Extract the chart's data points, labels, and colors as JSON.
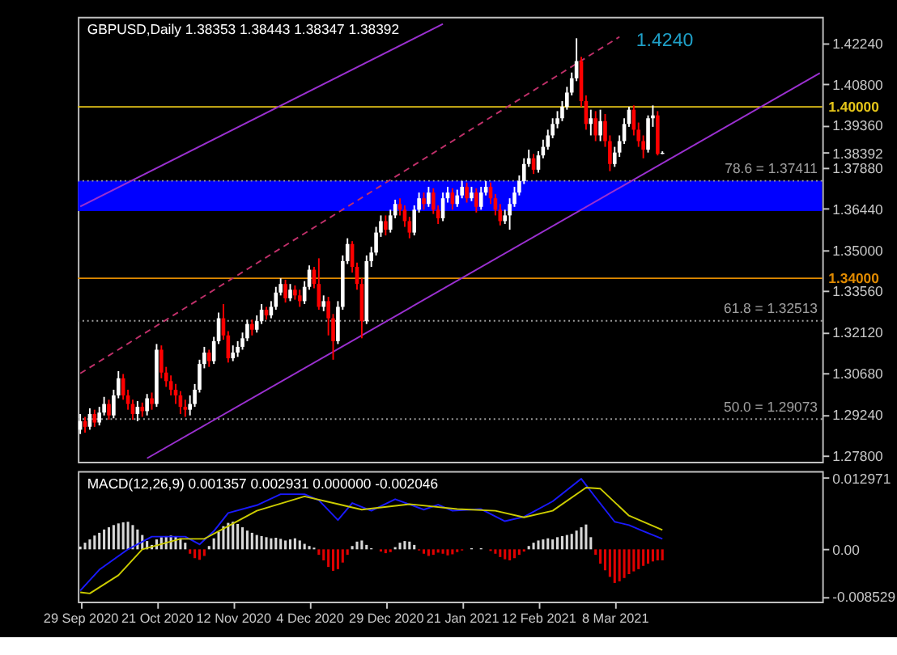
{
  "chart_data": [
    {
      "type": "candlestick",
      "title": "GBPUSD,Daily  1.38353 1.38443 1.38347 1.38392",
      "tick_labels": "y",
      "categories": [
        null,
        null,
        null,
        null,
        null,
        null,
        null,
        null,
        null,
        null,
        null,
        null,
        null,
        null,
        null,
        null,
        null,
        null,
        null,
        null,
        null,
        null,
        null,
        null,
        null,
        null,
        null,
        null,
        null,
        null,
        null,
        null,
        null,
        null,
        null,
        null,
        null,
        null,
        null,
        null,
        null,
        null,
        null,
        null,
        null,
        null,
        null,
        null,
        null,
        null,
        null,
        null,
        null,
        null,
        null,
        null,
        null,
        null,
        null,
        null,
        null,
        null,
        null,
        null,
        null,
        null,
        null,
        null,
        null,
        null,
        null,
        null,
        null,
        null,
        null,
        null,
        null,
        null,
        null,
        null,
        null,
        null,
        null,
        null,
        null,
        null,
        null,
        null,
        null,
        null,
        null,
        null,
        null,
        null,
        null,
        null,
        null,
        null,
        null,
        null,
        null,
        null,
        null,
        null,
        null,
        null,
        null,
        null,
        null,
        null,
        null,
        null,
        null,
        null,
        null,
        null,
        null,
        null,
        null,
        null,
        null,
        null,
        null,
        null,
        null,
        null,
        null,
        null,
        null,
        null,
        null,
        null,
        null,
        null,
        null,
        null,
        null,
        null,
        null,
        null,
        null,
        null,
        null,
        null,
        null,
        null,
        null,
        null,
        null,
        null,
        null,
        null,
        null,
        null,
        null,
        null
      ],
      "ylim": [
        1.2758,
        1.4315
      ],
      "yticks": [
        {
          "value": 1.278,
          "label": "1.27800"
        },
        {
          "value": 1.2924,
          "label": "1.29240"
        },
        {
          "value": 1.3068,
          "label": "1.30680"
        },
        {
          "value": 1.3212,
          "label": "1.32120"
        },
        {
          "value": 1.3356,
          "label": "1.33560"
        },
        {
          "value": 1.35,
          "label": "1.35000"
        },
        {
          "value": 1.3644,
          "label": "1.36440"
        },
        {
          "value": 1.3788,
          "label": "1.37880"
        },
        {
          "value": 1.38392,
          "label": "1.38392"
        },
        {
          "value": 1.3936,
          "label": "1.39360"
        },
        {
          "value": 1.408,
          "label": "1.40800"
        },
        {
          "value": 1.4224,
          "label": "1.42240"
        }
      ],
      "ohlc": [
        [
          1.287,
          1.2925,
          1.2855,
          1.29
        ],
        [
          1.29,
          1.2915,
          1.286,
          1.288
        ],
        [
          1.288,
          1.2945,
          1.287,
          1.2925
        ],
        [
          1.2925,
          1.294,
          1.288,
          1.2895
        ],
        [
          1.2895,
          1.295,
          1.2885,
          1.293
        ],
        [
          1.293,
          1.2985,
          1.292,
          1.296
        ],
        [
          1.296,
          1.2975,
          1.2905,
          1.292
        ],
        [
          1.292,
          1.301,
          1.291,
          1.299
        ],
        [
          1.299,
          1.3075,
          1.298,
          1.305
        ],
        [
          1.305,
          1.3065,
          1.2975,
          1.299
        ],
        [
          1.299,
          1.301,
          1.294,
          1.296
        ],
        [
          1.296,
          1.2975,
          1.2905,
          1.2925
        ],
        [
          1.2925,
          1.297,
          1.29,
          1.295
        ],
        [
          1.295,
          1.2965,
          1.2915,
          1.2935
        ],
        [
          1.2935,
          1.2995,
          1.292,
          1.298
        ],
        [
          1.298,
          1.3,
          1.294,
          1.296
        ],
        [
          1.296,
          1.317,
          1.295,
          1.315
        ],
        [
          1.315,
          1.3165,
          1.305,
          1.307
        ],
        [
          1.307,
          1.309,
          1.302,
          1.304
        ],
        [
          1.304,
          1.306,
          1.299,
          1.301
        ],
        [
          1.301,
          1.303,
          1.296,
          1.299
        ],
        [
          1.299,
          1.3005,
          1.2925,
          1.295
        ],
        [
          1.295,
          1.2975,
          1.2915,
          1.294
        ],
        [
          1.294,
          1.299,
          1.292,
          1.296
        ],
        [
          1.296,
          1.303,
          1.295,
          1.301
        ],
        [
          1.301,
          1.3115,
          1.3,
          1.31
        ],
        [
          1.31,
          1.316,
          1.3085,
          1.314
        ],
        [
          1.314,
          1.315,
          1.309,
          1.311
        ],
        [
          1.311,
          1.3195,
          1.31,
          1.318
        ],
        [
          1.318,
          1.328,
          1.317,
          1.326
        ],
        [
          1.326,
          1.331,
          1.3185,
          1.32
        ],
        [
          1.32,
          1.3215,
          1.3105,
          1.312
        ],
        [
          1.312,
          1.3165,
          1.311,
          1.314
        ],
        [
          1.314,
          1.318,
          1.3125,
          1.316
        ],
        [
          1.316,
          1.321,
          1.315,
          1.319
        ],
        [
          1.319,
          1.3255,
          1.318,
          1.324
        ],
        [
          1.324,
          1.3255,
          1.32,
          1.322
        ],
        [
          1.322,
          1.327,
          1.321,
          1.325
        ],
        [
          1.325,
          1.331,
          1.324,
          1.329
        ],
        [
          1.329,
          1.33,
          1.3255,
          1.327
        ],
        [
          1.327,
          1.332,
          1.326,
          1.33
        ],
        [
          1.33,
          1.337,
          1.329,
          1.335
        ],
        [
          1.335,
          1.34,
          1.334,
          1.338
        ],
        [
          1.338,
          1.3395,
          1.3315,
          1.333
        ],
        [
          1.333,
          1.338,
          1.332,
          1.336
        ],
        [
          1.336,
          1.3375,
          1.3325,
          1.334
        ],
        [
          1.334,
          1.336,
          1.33,
          1.332
        ],
        [
          1.332,
          1.339,
          1.331,
          1.337
        ],
        [
          1.337,
          1.3445,
          1.336,
          1.343
        ],
        [
          1.343,
          1.344,
          1.3365,
          1.338
        ],
        [
          1.338,
          1.347,
          1.329,
          1.33
        ],
        [
          1.33,
          1.334,
          1.3285,
          1.332
        ],
        [
          1.332,
          1.3335,
          1.32,
          1.326
        ],
        [
          1.326,
          1.3275,
          1.3115,
          1.318
        ],
        [
          1.318,
          1.332,
          1.317,
          1.33
        ],
        [
          1.33,
          1.348,
          1.329,
          1.346
        ],
        [
          1.346,
          1.354,
          1.345,
          1.352
        ],
        [
          1.352,
          1.353,
          1.342,
          1.344
        ],
        [
          1.344,
          1.3455,
          1.336,
          1.338
        ],
        [
          1.338,
          1.34,
          1.319,
          1.325
        ],
        [
          1.325,
          1.348,
          1.324,
          1.346
        ],
        [
          1.346,
          1.351,
          1.344,
          1.349
        ],
        [
          1.349,
          1.358,
          1.348,
          1.356
        ],
        [
          1.356,
          1.362,
          1.3545,
          1.36
        ],
        [
          1.36,
          1.362,
          1.355,
          1.357
        ],
        [
          1.357,
          1.364,
          1.356,
          1.362
        ],
        [
          1.362,
          1.3675,
          1.361,
          1.366
        ],
        [
          1.366,
          1.368,
          1.362,
          1.364
        ],
        [
          1.364,
          1.3655,
          1.358,
          1.36
        ],
        [
          1.36,
          1.3615,
          1.354,
          1.356
        ],
        [
          1.356,
          1.3655,
          1.355,
          1.364
        ],
        [
          1.364,
          1.37,
          1.363,
          1.368
        ],
        [
          1.368,
          1.37,
          1.364,
          1.366
        ],
        [
          1.366,
          1.372,
          1.365,
          1.37
        ],
        [
          1.37,
          1.3715,
          1.3625,
          1.364
        ],
        [
          1.364,
          1.3655,
          1.359,
          1.361
        ],
        [
          1.361,
          1.37,
          1.36,
          1.368
        ],
        [
          1.368,
          1.372,
          1.3665,
          1.37
        ],
        [
          1.37,
          1.3715,
          1.364,
          1.366
        ],
        [
          1.366,
          1.371,
          1.365,
          1.369
        ],
        [
          1.369,
          1.374,
          1.368,
          1.372
        ],
        [
          1.372,
          1.3735,
          1.3665,
          1.368
        ],
        [
          1.368,
          1.372,
          1.367,
          1.37
        ],
        [
          1.37,
          1.3715,
          1.363,
          1.365
        ],
        [
          1.365,
          1.372,
          1.364,
          1.37
        ],
        [
          1.37,
          1.374,
          1.369,
          1.372
        ],
        [
          1.372,
          1.3735,
          1.366,
          1.368
        ],
        [
          1.368,
          1.3695,
          1.362,
          1.364
        ],
        [
          1.364,
          1.366,
          1.3585,
          1.36
        ],
        [
          1.36,
          1.364,
          1.359,
          1.362
        ],
        [
          1.362,
          1.368,
          1.357,
          1.366
        ],
        [
          1.366,
          1.372,
          1.365,
          1.37
        ],
        [
          1.37,
          1.376,
          1.369,
          1.374
        ],
        [
          1.374,
          1.382,
          1.373,
          1.38
        ],
        [
          1.38,
          1.385,
          1.379,
          1.382
        ],
        [
          1.382,
          1.3835,
          1.3765,
          1.378
        ],
        [
          1.378,
          1.3845,
          1.377,
          1.383
        ],
        [
          1.383,
          1.3885,
          1.382,
          1.386
        ],
        [
          1.386,
          1.392,
          1.385,
          1.39
        ],
        [
          1.39,
          1.396,
          1.389,
          1.394
        ],
        [
          1.394,
          1.3985,
          1.3925,
          1.396
        ],
        [
          1.396,
          1.402,
          1.395,
          1.4
        ],
        [
          1.4,
          1.407,
          1.399,
          1.405
        ],
        [
          1.405,
          1.412,
          1.404,
          1.41
        ],
        [
          1.41,
          1.424,
          1.409,
          1.416
        ],
        [
          1.416,
          1.4175,
          1.4,
          1.402
        ],
        [
          1.402,
          1.404,
          1.392,
          1.394
        ],
        [
          1.394,
          1.399,
          1.39,
          1.396
        ],
        [
          1.396,
          1.3985,
          1.388,
          1.39
        ],
        [
          1.39,
          1.399,
          1.388,
          1.395
        ],
        [
          1.395,
          1.3975,
          1.386,
          1.388
        ],
        [
          1.388,
          1.39,
          1.3775,
          1.38
        ],
        [
          1.38,
          1.386,
          1.379,
          1.384
        ],
        [
          1.384,
          1.39,
          1.3825,
          1.388
        ],
        [
          1.388,
          1.396,
          1.387,
          1.394
        ],
        [
          1.394,
          1.4,
          1.393,
          1.399
        ],
        [
          1.399,
          1.4005,
          1.39,
          1.392
        ],
        [
          1.392,
          1.3945,
          1.386,
          1.388
        ],
        [
          1.388,
          1.39,
          1.382,
          1.385
        ],
        [
          1.385,
          1.397,
          1.384,
          1.396
        ],
        [
          1.396,
          1.4005,
          1.393,
          1.397
        ],
        [
          1.397,
          1.3985,
          1.383,
          1.38353
        ],
        [
          1.38353,
          1.38443,
          1.38347,
          1.38392
        ],
        null,
        null,
        null,
        null,
        null,
        null,
        null,
        null,
        null,
        null,
        null,
        null,
        null,
        null,
        null,
        null,
        null,
        null,
        null,
        null,
        null,
        null,
        null,
        null,
        null,
        null,
        null,
        null,
        null,
        null,
        null,
        null,
        null
      ],
      "series": [
        {
          "type": "line",
          "color": "#9b30d0",
          "line_style": "solid",
          "values": [
            1.3651,
            null,
            null,
            null,
            null,
            null,
            null,
            null,
            null,
            null,
            null,
            null,
            null,
            null,
            null,
            null,
            null,
            null,
            null,
            null,
            null,
            null,
            null,
            null,
            null,
            null,
            null,
            null,
            null,
            null,
            null,
            null,
            null,
            null,
            null,
            null,
            null,
            null,
            null,
            null,
            null,
            null,
            null,
            null,
            null,
            null,
            null,
            null,
            null,
            null,
            null,
            null,
            null,
            null,
            null,
            null,
            null,
            null,
            null,
            null,
            null,
            null,
            null,
            null,
            null,
            null,
            null,
            null,
            null,
            null,
            null,
            null,
            null,
            null,
            null,
            null,
            1.429,
            null,
            null,
            null,
            null,
            null,
            null,
            null,
            null,
            null,
            null,
            null,
            null,
            null,
            null,
            null,
            null,
            null,
            null,
            null,
            null,
            null,
            null,
            null,
            null,
            null,
            null,
            null,
            null,
            null,
            null,
            null,
            null,
            null,
            null,
            null,
            null,
            null,
            null,
            null,
            null,
            null,
            null,
            null,
            null,
            null,
            null,
            null,
            null,
            null,
            null,
            null,
            null,
            null,
            null,
            null,
            null,
            null,
            null,
            null,
            null,
            null,
            null,
            null,
            null,
            null,
            null,
            null,
            null,
            null,
            null,
            null,
            null,
            null,
            null,
            null,
            null,
            null,
            null,
            null
          ]
        },
        {
          "type": "line",
          "color": "#c0306a",
          "line_style": "dashed",
          "values": [
            1.3067,
            null,
            null,
            null,
            null,
            null,
            null,
            null,
            null,
            null,
            null,
            null,
            null,
            null,
            null,
            null,
            null,
            null,
            null,
            null,
            null,
            null,
            null,
            null,
            null,
            null,
            null,
            null,
            null,
            null,
            null,
            null,
            null,
            null,
            null,
            null,
            null,
            null,
            null,
            null,
            null,
            null,
            null,
            null,
            null,
            null,
            null,
            null,
            null,
            null,
            null,
            null,
            null,
            null,
            null,
            null,
            null,
            null,
            null,
            null,
            null,
            null,
            null,
            null,
            null,
            null,
            null,
            null,
            null,
            null,
            null,
            null,
            null,
            null,
            null,
            null,
            null,
            null,
            null,
            null,
            null,
            null,
            null,
            null,
            null,
            null,
            null,
            null,
            null,
            null,
            null,
            null,
            null,
            null,
            null,
            null,
            null,
            null,
            null,
            null,
            null,
            null,
            null,
            null,
            null,
            null,
            null,
            null,
            null,
            null,
            null,
            null,
            null,
            1.4245,
            null,
            null,
            null,
            null,
            null,
            null,
            null,
            null,
            null,
            null,
            null,
            null,
            null,
            null,
            null,
            null,
            null,
            null,
            null,
            null,
            null,
            null,
            null,
            null,
            null,
            null,
            null,
            null,
            null,
            null,
            null,
            null,
            null,
            null,
            null,
            null,
            null,
            null,
            null,
            null,
            null,
            null
          ]
        },
        {
          "type": "line",
          "color": "#9b30d0",
          "line_style": "solid",
          "values": [
            null,
            null,
            null,
            null,
            null,
            null,
            null,
            null,
            null,
            null,
            null,
            null,
            null,
            null,
            1.277,
            null,
            null,
            null,
            null,
            null,
            null,
            null,
            null,
            null,
            null,
            null,
            null,
            null,
            null,
            null,
            null,
            null,
            null,
            null,
            null,
            null,
            null,
            null,
            null,
            null,
            null,
            null,
            null,
            null,
            null,
            null,
            null,
            null,
            null,
            null,
            null,
            null,
            null,
            null,
            null,
            null,
            null,
            null,
            null,
            null,
            null,
            null,
            null,
            null,
            null,
            null,
            null,
            null,
            null,
            null,
            null,
            null,
            null,
            null,
            null,
            null,
            null,
            null,
            null,
            null,
            null,
            null,
            null,
            null,
            null,
            null,
            null,
            null,
            null,
            null,
            null,
            null,
            null,
            null,
            null,
            null,
            null,
            null,
            null,
            null,
            null,
            null,
            null,
            null,
            null,
            null,
            null,
            null,
            null,
            null,
            null,
            null,
            null,
            null,
            null,
            null,
            null,
            null,
            null,
            null,
            null,
            null,
            null,
            null,
            null,
            null,
            null,
            null,
            null,
            null,
            null,
            null,
            null,
            null,
            null,
            null,
            null,
            null,
            null,
            null,
            null,
            null,
            null,
            null,
            null,
            null,
            null,
            null,
            null,
            null,
            null,
            null,
            null,
            null,
            null,
            1.4118
          ]
        }
      ],
      "bands": [
        {
          "axis": "y",
          "from": 1.3635,
          "to": 1.37411,
          "color": "#0000ff"
        }
      ],
      "ref_lines": [
        {
          "axis": "y",
          "value": 1.4,
          "label": "1.40000",
          "color": "#e6c619",
          "line_style": "solid"
        },
        {
          "axis": "y",
          "value": 1.34,
          "label": "1.34000",
          "color": "#e08a00",
          "line_style": "solid"
        },
        {
          "axis": "y",
          "value": 1.37411,
          "label": "78.6 = 1.37411",
          "color": "#a0a0a0",
          "line_style": "dotted"
        },
        {
          "axis": "y",
          "value": 1.32513,
          "label": "61.8 = 1.32513",
          "color": "#a0a0a0",
          "line_style": "dotted"
        },
        {
          "axis": "y",
          "value": 1.29073,
          "label": "50.0 = 1.29073",
          "color": "#a0a0a0",
          "line_style": "dotted"
        }
      ],
      "annotations": [
        "1.4240"
      ]
    },
    {
      "type": "bar",
      "title": "MACD(12,26,9) 0.001357 0.002931 0.000000 -0.002046",
      "categories": [
        "29 Sep 2020",
        null,
        null,
        null,
        null,
        null,
        null,
        null,
        null,
        null,
        null,
        null,
        null,
        null,
        null,
        null,
        "21 Oct 2020",
        null,
        null,
        null,
        null,
        null,
        null,
        null,
        null,
        null,
        null,
        null,
        null,
        null,
        null,
        null,
        "12 Nov 2020",
        null,
        null,
        null,
        null,
        null,
        null,
        null,
        null,
        null,
        null,
        null,
        null,
        null,
        null,
        null,
        "4 Dec 2020",
        null,
        null,
        null,
        null,
        null,
        null,
        null,
        null,
        null,
        null,
        null,
        null,
        null,
        null,
        null,
        "29 Dec 2020",
        null,
        null,
        null,
        null,
        null,
        null,
        null,
        null,
        null,
        null,
        null,
        null,
        null,
        null,
        null,
        "21 Jan 2021",
        null,
        null,
        null,
        null,
        null,
        null,
        null,
        null,
        null,
        null,
        null,
        null,
        null,
        null,
        null,
        "12 Feb 2021",
        null,
        null,
        null,
        null,
        null,
        null,
        null,
        null,
        null,
        null,
        null,
        null,
        null,
        null,
        null,
        "8 Mar 2021",
        null,
        null,
        null,
        null,
        null,
        null,
        null,
        null,
        null,
        null,
        null,
        null,
        null,
        null,
        null,
        null,
        null,
        null,
        null,
        null,
        null,
        null,
        null,
        null,
        null,
        null,
        null,
        null,
        null,
        null,
        null,
        null,
        null,
        null,
        null,
        null,
        null,
        null,
        null,
        null,
        null,
        null,
        null
      ],
      "ylim": [
        -0.0095,
        0.0142
      ],
      "yticks": [
        0.012971,
        {
          "value": 0,
          "label": "0.00"
        },
        -0.008529
      ],
      "series": [
        {
          "type": "bar",
          "color": "#d8d8d8",
          "values": [
            0.0005,
            0.0012,
            0.0018,
            0.0025,
            0.003,
            0.0036,
            0.004,
            0.0044,
            0.0047,
            0.0049,
            0.005,
            0.0044,
            0.0036,
            0.0026,
            0.0015,
            0.0008,
            0.0018,
            0.0022,
            0.0024,
            0.0025,
            0.0024,
            0.002,
            0.0012,
            null,
            null,
            null,
            null,
            0.0006,
            0.002,
            0.0032,
            0.0042,
            0.0048,
            0.005,
            0.0046,
            0.004,
            0.0034,
            0.003,
            0.0026,
            0.0024,
            0.0022,
            0.002,
            0.0021,
            0.0019,
            0.0016,
            0.0018,
            0.002,
            0.0016,
            0.001,
            0.0006,
            0.0003,
            null,
            null,
            null,
            null,
            null,
            null,
            null,
            0.0006,
            0.0014,
            0.0016,
            0.0008,
            0.0002,
            null,
            null,
            null,
            null,
            0.0004,
            0.0012,
            0.0015,
            0.0014,
            0.0008,
            null,
            null,
            null,
            null,
            null,
            null,
            null,
            null,
            null,
            null,
            null,
            0.0002,
            null,
            0.0002,
            null,
            null,
            null,
            null,
            null,
            null,
            null,
            null,
            null,
            0.0006,
            0.0012,
            0.0016,
            0.0018,
            0.002,
            0.0018,
            0.0022,
            0.0024,
            0.0026,
            0.0028,
            0.0034,
            0.004,
            0.0045,
            0.0022,
            null,
            null,
            null,
            null,
            null,
            null,
            null,
            null,
            null,
            null,
            null,
            null,
            null,
            null,
            null,
            null,
            null,
            null,
            null,
            null,
            null,
            null,
            null,
            null,
            null,
            null,
            null,
            null,
            null,
            null,
            null,
            null,
            null,
            null,
            null,
            null,
            null,
            null,
            null,
            null,
            null,
            null,
            null,
            null,
            null,
            null,
            null,
            null
          ]
        },
        {
          "type": "bar",
          "color": "#e00000",
          "values": [
            null,
            null,
            null,
            null,
            null,
            null,
            null,
            null,
            null,
            null,
            null,
            null,
            null,
            null,
            null,
            null,
            null,
            null,
            null,
            null,
            null,
            null,
            null,
            -0.0008,
            -0.0016,
            -0.0019,
            -0.0012,
            null,
            null,
            null,
            null,
            null,
            null,
            null,
            null,
            null,
            null,
            null,
            null,
            null,
            null,
            null,
            null,
            null,
            null,
            null,
            null,
            null,
            null,
            null,
            -0.001,
            -0.002,
            -0.0032,
            -0.0039,
            -0.0036,
            -0.0024,
            -0.001,
            null,
            null,
            null,
            null,
            null,
            null,
            -0.0004,
            -0.0007,
            -0.0005,
            null,
            null,
            null,
            null,
            null,
            -0.0002,
            -0.0008,
            -0.0012,
            -0.001,
            -0.0006,
            -0.0008,
            -0.0011,
            -0.0009,
            -0.0005,
            -0.0002,
            null,
            null,
            null,
            null,
            null,
            -0.0003,
            -0.0008,
            -0.0014,
            -0.0018,
            -0.002,
            -0.0016,
            -0.001,
            -0.0004,
            null,
            null,
            null,
            null,
            null,
            null,
            null,
            null,
            null,
            null,
            null,
            null,
            null,
            null,
            -0.001,
            -0.0026,
            -0.0038,
            -0.005,
            -0.0061,
            -0.0058,
            -0.0052,
            -0.0045,
            -0.004,
            -0.0036,
            -0.003,
            -0.0026,
            -0.0022,
            -0.002,
            -0.002,
            null,
            null,
            null,
            null,
            null,
            null,
            null,
            null,
            null,
            null,
            null,
            null,
            null,
            null,
            null,
            null,
            null,
            null,
            null,
            null,
            null,
            null,
            null,
            null,
            null,
            null,
            null,
            null,
            null,
            null,
            null,
            null,
            null
          ]
        },
        {
          "type": "line",
          "color": "#1a1aff",
          "line_style": "solid",
          "values": [
            -0.0075,
            null,
            null,
            null,
            -0.0037,
            null,
            null,
            null,
            null,
            null,
            0,
            null,
            null,
            null,
            null,
            0.0023,
            null,
            null,
            null,
            null,
            null,
            null,
            0.0023,
            null,
            null,
            0.0009,
            null,
            null,
            0.0033,
            null,
            null,
            0.0066,
            null,
            null,
            null,
            null,
            null,
            0.008,
            null,
            null,
            null,
            null,
            0.01,
            null,
            null,
            null,
            null,
            0.01,
            null,
            null,
            0.0089,
            null,
            null,
            null,
            0.0053,
            null,
            null,
            0.0084,
            null,
            null,
            null,
            0.007,
            null,
            null,
            null,
            null,
            0.0091,
            null,
            null,
            null,
            null,
            null,
            0.0072,
            null,
            null,
            0.0081,
            null,
            null,
            0.007,
            null,
            null,
            null,
            null,
            null,
            0.0073,
            null,
            null,
            null,
            null,
            0.0051,
            null,
            null,
            null,
            0.0059,
            null,
            null,
            null,
            null,
            null,
            0.0087,
            null,
            null,
            null,
            null,
            null,
            0.0128,
            null,
            null,
            0.0094,
            null,
            null,
            null,
            0.005,
            null,
            null,
            0.0044,
            null,
            null,
            0.0033,
            null,
            null,
            null,
            0.0019,
            null,
            null,
            null,
            null,
            null,
            null,
            null,
            null,
            null,
            null,
            null,
            null,
            null,
            null,
            null,
            null,
            null,
            null,
            null,
            null,
            null,
            null,
            null,
            null,
            null,
            null,
            null,
            null,
            null,
            null,
            null,
            null,
            null
          ]
        },
        {
          "type": "line",
          "color": "#cccc00",
          "line_style": "solid",
          "values": [
            -0.0078,
            null,
            -0.008,
            null,
            null,
            null,
            null,
            null,
            -0.0047,
            null,
            null,
            null,
            null,
            0,
            null,
            null,
            null,
            null,
            null,
            null,
            null,
            0.0019,
            null,
            null,
            null,
            null,
            0.0019,
            null,
            null,
            null,
            null,
            0.0042,
            null,
            null,
            null,
            null,
            null,
            0.007,
            null,
            null,
            null,
            null,
            null,
            null,
            null,
            null,
            null,
            0.0096,
            null,
            null,
            null,
            null,
            null,
            0.0084,
            null,
            null,
            null,
            null,
            null,
            0.0072,
            null,
            null,
            null,
            null,
            null,
            null,
            null,
            null,
            null,
            0.0082,
            null,
            null,
            null,
            null,
            null,
            null,
            null,
            null,
            null,
            0.0073,
            null,
            null,
            null,
            null,
            null,
            null,
            null,
            0.007,
            null,
            null,
            null,
            null,
            null,
            0.0058,
            null,
            null,
            null,
            null,
            null,
            0.007,
            null,
            null,
            null,
            null,
            null,
            null,
            0.0112,
            null,
            null,
            0.011,
            null,
            null,
            null,
            null,
            null,
            0.0061,
            null,
            null,
            null,
            null,
            null,
            null,
            0.0035,
            null,
            null,
            null,
            null,
            null,
            null,
            null,
            null,
            null,
            null,
            null,
            null,
            null,
            null,
            null,
            null,
            null,
            null,
            null,
            null,
            null,
            null,
            null,
            null,
            null,
            null,
            null,
            null,
            null,
            null,
            null,
            null,
            null
          ]
        }
      ]
    }
  ]
}
